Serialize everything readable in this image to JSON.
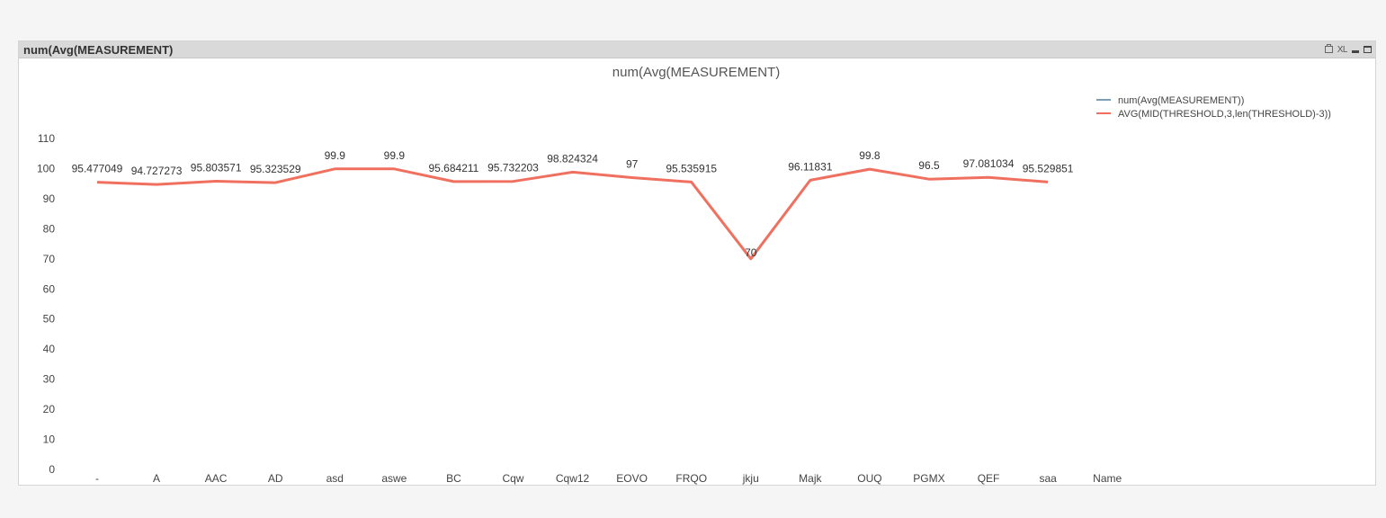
{
  "window": {
    "caption_title": "num(Avg(MEASUREMENT)",
    "xl_label": "XL"
  },
  "chart_data": {
    "type": "line",
    "title": "num(Avg(MEASUREMENT)",
    "xlabel": "",
    "ylabel": "",
    "categories": [
      "-",
      "A",
      "AAC",
      "AD",
      "asd",
      "aswe",
      "BC",
      "Cqw",
      "Cqw12",
      "EOVO",
      "FRQO",
      "jkju",
      "Majk",
      "OUQ",
      "PGMX",
      "QEF",
      "saa",
      "Name"
    ],
    "series": [
      {
        "name": "num(Avg(MEASUREMENT))",
        "color": "#7f9fb4",
        "values": [
          null,
          null,
          null,
          null,
          null,
          null,
          null,
          null,
          null,
          null,
          null,
          null,
          null,
          null,
          null,
          null,
          null,
          null
        ]
      },
      {
        "name": "AVG(MID(THRESHOLD,3,len(THRESHOLD)-3))",
        "color": "#f07060",
        "values": [
          95.477049,
          94.727273,
          95.803571,
          95.323529,
          99.9,
          99.9,
          95.684211,
          95.732203,
          98.824324,
          97,
          95.535915,
          70,
          96.11831,
          99.8,
          96.5,
          97.081034,
          95.529851,
          null
        ],
        "labels": [
          "95.477049",
          "94.727273",
          "95.803571",
          "95.323529",
          "99.9",
          "99.9",
          "95.684211",
          "95.732203",
          "98.824324",
          "97",
          "95.535915",
          "70",
          "96.11831",
          "99.8",
          "96.5",
          "97.081034",
          "95.529851",
          ""
        ]
      }
    ],
    "ylim": [
      0,
      110
    ],
    "yticks": [
      0,
      10,
      20,
      30,
      40,
      50,
      60,
      70,
      80,
      90,
      100,
      110
    ],
    "grid": false,
    "legend_position": "top-right"
  }
}
